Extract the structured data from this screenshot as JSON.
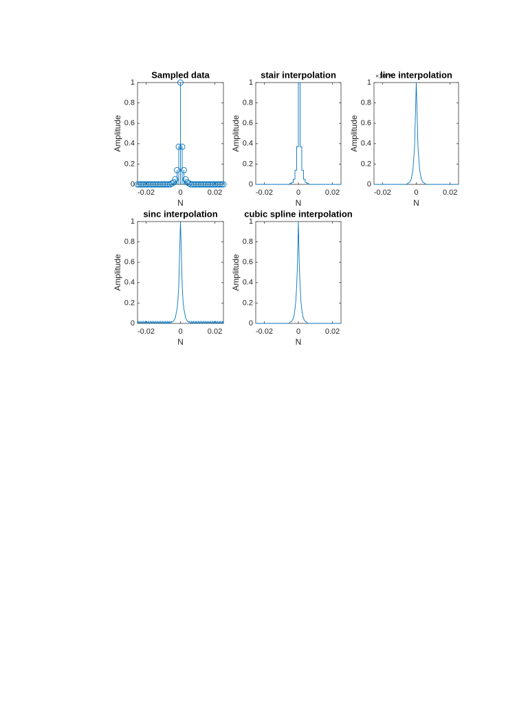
{
  "chart_data": [
    {
      "type": "stem",
      "title": "Sampled data",
      "xlabel": "N",
      "ylabel": "Amplitude",
      "xlim": [
        -0.025,
        0.025
      ],
      "xticks": [
        -0.02,
        0,
        0.02
      ],
      "ylim": [
        0,
        1
      ],
      "yticks": [
        0,
        0.2,
        0.4,
        0.6,
        0.8,
        1
      ],
      "color": "#0072bd",
      "x": [
        -0.025,
        -0.024,
        -0.023,
        -0.022,
        -0.021,
        -0.02,
        -0.019,
        -0.018,
        -0.017,
        -0.016,
        -0.015,
        -0.014,
        -0.013,
        -0.012,
        -0.011,
        -0.01,
        -0.009,
        -0.008,
        -0.007,
        -0.006,
        -0.005,
        -0.004,
        -0.003,
        -0.002,
        -0.001,
        0,
        0.001,
        0.002,
        0.003,
        0.004,
        0.005,
        0.006,
        0.007,
        0.008,
        0.009,
        0.01,
        0.011,
        0.012,
        0.013,
        0.014,
        0.015,
        0.016,
        0.017,
        0.018,
        0.019,
        0.02,
        0.021,
        0.022,
        0.023,
        0.024,
        0.025
      ],
      "values": [
        0,
        0,
        0,
        0,
        0,
        0,
        0,
        0,
        0,
        0,
        0,
        0,
        0,
        0,
        0,
        0,
        0,
        0,
        0,
        0,
        0.01,
        0.02,
        0.05,
        0.14,
        0.37,
        1,
        0.37,
        0.14,
        0.05,
        0.02,
        0.01,
        0,
        0,
        0,
        0,
        0,
        0,
        0,
        0,
        0,
        0,
        0,
        0,
        0,
        0,
        0,
        0,
        0,
        0,
        0,
        0
      ]
    },
    {
      "type": "stairs",
      "title": "stair interpolation",
      "xlabel": "N",
      "ylabel": "Amplitude",
      "xlim": [
        -0.025,
        0.025
      ],
      "xticks": [
        -0.02,
        0,
        0.02
      ],
      "ylim": [
        0,
        1
      ],
      "yticks": [
        0,
        0.2,
        0.4,
        0.6,
        0.8,
        1
      ],
      "color": "#0072bd",
      "x": [
        -0.025,
        -0.024,
        -0.023,
        -0.022,
        -0.021,
        -0.02,
        -0.019,
        -0.018,
        -0.017,
        -0.016,
        -0.015,
        -0.014,
        -0.013,
        -0.012,
        -0.011,
        -0.01,
        -0.009,
        -0.008,
        -0.007,
        -0.006,
        -0.005,
        -0.004,
        -0.003,
        -0.002,
        -0.001,
        0,
        0.001,
        0.002,
        0.003,
        0.004,
        0.005,
        0.006,
        0.007,
        0.008,
        0.009,
        0.01,
        0.011,
        0.012,
        0.013,
        0.014,
        0.015,
        0.016,
        0.017,
        0.018,
        0.019,
        0.02,
        0.021,
        0.022,
        0.023,
        0.024,
        0.025
      ],
      "values": [
        0,
        0,
        0,
        0,
        0,
        0,
        0,
        0,
        0,
        0,
        0,
        0,
        0,
        0,
        0,
        0,
        0,
        0,
        0,
        0,
        0.01,
        0.02,
        0.05,
        0.14,
        0.37,
        1,
        0.37,
        0.14,
        0.05,
        0.02,
        0.01,
        0,
        0,
        0,
        0,
        0,
        0,
        0,
        0,
        0,
        0,
        0,
        0,
        0,
        0,
        0,
        0,
        0,
        0,
        0,
        0
      ]
    },
    {
      "type": "line",
      "title": "line interpolation",
      "annotation": "×10⁻³",
      "xlabel": "N",
      "ylabel": "Amplitude",
      "xlim": [
        -0.025,
        0.025
      ],
      "xticks": [
        -0.02,
        0,
        0.02
      ],
      "ylim": [
        0,
        1
      ],
      "yticks": [
        0,
        0.2,
        0.4,
        0.6,
        0.8,
        1
      ],
      "color": "#0072bd",
      "x": [
        -0.025,
        -0.024,
        -0.023,
        -0.022,
        -0.021,
        -0.02,
        -0.019,
        -0.018,
        -0.017,
        -0.016,
        -0.015,
        -0.014,
        -0.013,
        -0.012,
        -0.011,
        -0.01,
        -0.009,
        -0.008,
        -0.007,
        -0.006,
        -0.005,
        -0.004,
        -0.003,
        -0.002,
        -0.001,
        0,
        0.001,
        0.002,
        0.003,
        0.004,
        0.005,
        0.006,
        0.007,
        0.008,
        0.009,
        0.01,
        0.011,
        0.012,
        0.013,
        0.014,
        0.015,
        0.016,
        0.017,
        0.018,
        0.019,
        0.02,
        0.021,
        0.022,
        0.023,
        0.024,
        0.025
      ],
      "values": [
        0,
        0,
        0,
        0,
        0,
        0,
        0,
        0,
        0,
        0,
        0,
        0,
        0,
        0,
        0,
        0,
        0,
        0,
        0,
        0,
        0.01,
        0.02,
        0.05,
        0.14,
        0.37,
        1,
        0.37,
        0.14,
        0.05,
        0.02,
        0.01,
        0,
        0,
        0,
        0,
        0,
        0,
        0,
        0,
        0,
        0,
        0,
        0,
        0,
        0,
        0,
        0,
        0,
        0,
        0,
        0
      ]
    },
    {
      "type": "line",
      "title": "sinc interpolation",
      "xlabel": "N",
      "ylabel": "Amplitude",
      "xlim": [
        -0.025,
        0.025
      ],
      "xticks": [
        -0.02,
        0,
        0.02
      ],
      "ylim": [
        0,
        1
      ],
      "yticks": [
        0,
        0.2,
        0.4,
        0.6,
        0.8,
        1
      ],
      "color": "#0072bd",
      "x": [
        -0.025,
        -0.0245,
        -0.024,
        -0.0235,
        -0.023,
        -0.0225,
        -0.022,
        -0.0215,
        -0.021,
        -0.0205,
        -0.02,
        -0.0195,
        -0.019,
        -0.0185,
        -0.018,
        -0.0175,
        -0.017,
        -0.0165,
        -0.016,
        -0.0155,
        -0.015,
        -0.0145,
        -0.014,
        -0.0135,
        -0.013,
        -0.0125,
        -0.012,
        -0.0115,
        -0.011,
        -0.0105,
        -0.01,
        -0.0095,
        -0.009,
        -0.0085,
        -0.008,
        -0.0075,
        -0.007,
        -0.0065,
        -0.006,
        -0.0055,
        -0.005,
        -0.0045,
        -0.004,
        -0.0035,
        -0.003,
        -0.0025,
        -0.002,
        -0.0015,
        -0.001,
        -0.0005,
        0,
        0.0005,
        0.001,
        0.0015,
        0.002,
        0.0025,
        0.003,
        0.0035,
        0.004,
        0.0045,
        0.005,
        0.0055,
        0.006,
        0.0065,
        0.007,
        0.0075,
        0.008,
        0.0085,
        0.009,
        0.0095,
        0.01,
        0.0105,
        0.011,
        0.0115,
        0.012,
        0.0125,
        0.013,
        0.0135,
        0.014,
        0.0145,
        0.015,
        0.0155,
        0.016,
        0.0165,
        0.017,
        0.0175,
        0.018,
        0.0185,
        0.019,
        0.0195,
        0.02,
        0.0205,
        0.021,
        0.0215,
        0.022,
        0.0225,
        0.023,
        0.0235,
        0.024,
        0.0245,
        0.025
      ],
      "values": [
        0,
        0.02,
        0,
        0.02,
        0,
        0.02,
        0,
        0.02,
        0,
        0.02,
        0,
        0.02,
        0,
        0.02,
        0,
        0.02,
        0,
        0.02,
        0,
        0.02,
        0,
        0.02,
        0,
        0.02,
        0,
        0.02,
        0,
        0.02,
        0,
        0.02,
        0,
        0.02,
        0,
        0.02,
        0,
        0.02,
        0,
        0.02,
        0,
        0.02,
        0.01,
        0.02,
        0.02,
        0.04,
        0.05,
        0.1,
        0.14,
        0.22,
        0.37,
        0.7,
        1,
        0.7,
        0.37,
        0.22,
        0.14,
        0.1,
        0.05,
        0.04,
        0.02,
        0.02,
        0.01,
        0.02,
        0,
        0.02,
        0,
        0.02,
        0,
        0.02,
        0,
        0.02,
        0,
        0.02,
        0,
        0.02,
        0,
        0.02,
        0,
        0.02,
        0,
        0.02,
        0,
        0.02,
        0,
        0.02,
        0,
        0.02,
        0,
        0.02,
        0,
        0.02,
        0,
        0.02,
        0,
        0.02,
        0,
        0.02,
        0,
        0.02,
        0,
        0.02,
        0
      ]
    },
    {
      "type": "line",
      "title": "cubic spline interpolation",
      "xlabel": "N",
      "ylabel": "Amplitude",
      "xlim": [
        -0.025,
        0.025
      ],
      "xticks": [
        -0.02,
        0,
        0.02
      ],
      "ylim": [
        0,
        1
      ],
      "yticks": [
        0,
        0.2,
        0.4,
        0.6,
        0.8,
        1
      ],
      "color": "#0072bd",
      "x": [
        -0.025,
        -0.0245,
        -0.024,
        -0.0235,
        -0.023,
        -0.0225,
        -0.022,
        -0.0215,
        -0.021,
        -0.0205,
        -0.02,
        -0.0195,
        -0.019,
        -0.0185,
        -0.018,
        -0.0175,
        -0.017,
        -0.0165,
        -0.016,
        -0.0155,
        -0.015,
        -0.0145,
        -0.014,
        -0.0135,
        -0.013,
        -0.0125,
        -0.012,
        -0.0115,
        -0.011,
        -0.0105,
        -0.01,
        -0.0095,
        -0.009,
        -0.0085,
        -0.008,
        -0.0075,
        -0.007,
        -0.0065,
        -0.006,
        -0.0055,
        -0.005,
        -0.0045,
        -0.004,
        -0.0035,
        -0.003,
        -0.0025,
        -0.002,
        -0.0015,
        -0.001,
        -0.0005,
        0,
        0.0005,
        0.001,
        0.0015,
        0.002,
        0.0025,
        0.003,
        0.0035,
        0.004,
        0.0045,
        0.005,
        0.0055,
        0.006,
        0.0065,
        0.007,
        0.0075,
        0.008,
        0.0085,
        0.009,
        0.0095,
        0.01,
        0.0105,
        0.011,
        0.0115,
        0.012,
        0.0125,
        0.013,
        0.0135,
        0.014,
        0.0145,
        0.015,
        0.0155,
        0.016,
        0.0165,
        0.017,
        0.0175,
        0.018,
        0.0185,
        0.019,
        0.0195,
        0.02,
        0.0205,
        0.021,
        0.0215,
        0.022,
        0.0225,
        0.023,
        0.0235,
        0.024,
        0.0245,
        0.025
      ],
      "values": [
        0,
        0,
        0,
        0,
        0,
        0,
        0,
        0,
        0,
        0,
        0,
        0,
        0,
        0,
        0,
        0,
        0,
        0,
        0,
        0,
        0,
        0,
        0,
        0,
        0,
        0,
        0,
        0,
        0,
        0,
        0,
        0,
        0,
        0,
        0,
        0,
        0,
        0,
        0,
        0,
        0.01,
        0.015,
        0.02,
        0.03,
        0.05,
        0.08,
        0.14,
        0.22,
        0.37,
        0.6,
        1,
        0.6,
        0.37,
        0.22,
        0.14,
        0.08,
        0.05,
        0.03,
        0.02,
        0.015,
        0.01,
        0,
        0,
        0,
        0,
        0,
        0,
        0,
        0,
        0,
        0,
        0,
        0,
        0,
        0,
        0,
        0,
        0,
        0,
        0,
        0,
        0,
        0,
        0,
        0,
        0,
        0,
        0,
        0,
        0,
        0,
        0,
        0,
        0,
        0,
        0,
        0,
        0,
        0,
        0,
        0
      ]
    }
  ]
}
